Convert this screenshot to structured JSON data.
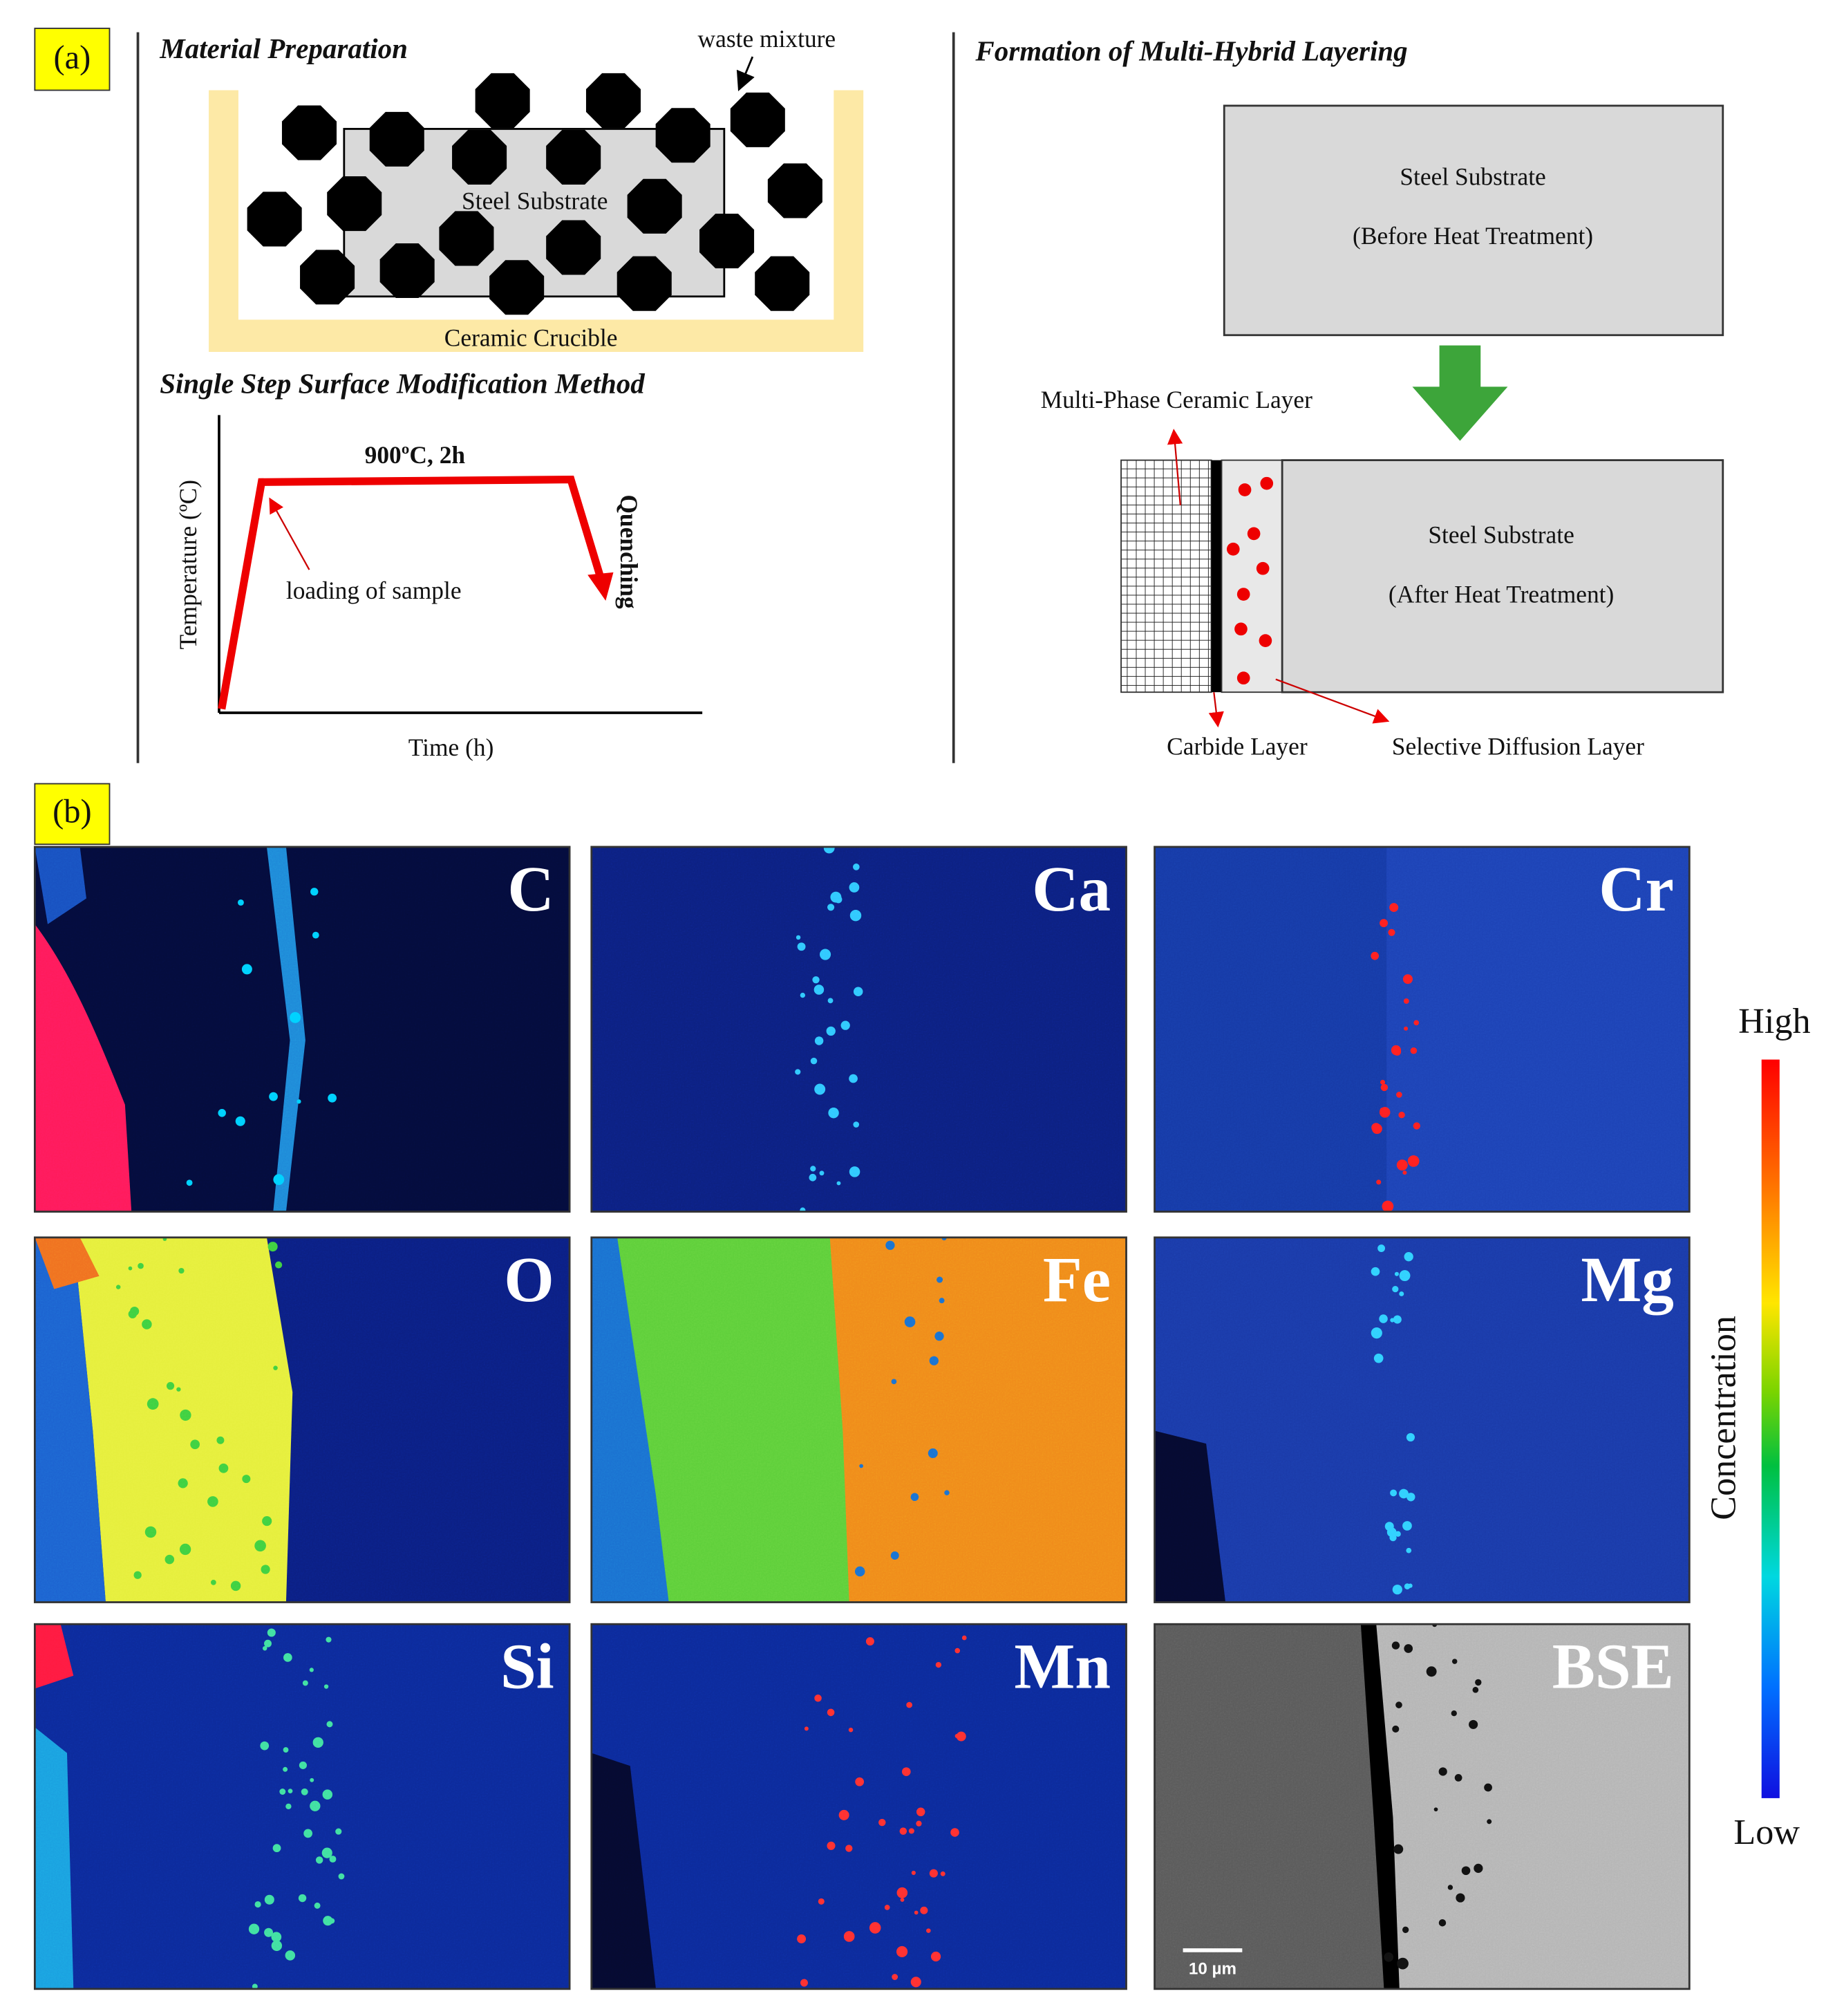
{
  "panel_a": {
    "label": "(a)",
    "material_preparation": {
      "title": "Material Preparation",
      "waste_mixture": "waste mixture",
      "steel_substrate": "Steel Substrate",
      "ceramic_crucible": "Ceramic Crucible"
    },
    "method": {
      "title": "Single Step Surface Modification Method",
      "condition": "900ºC, 2h",
      "y_axis": "Temperature (ºC)",
      "x_axis": "Time (h)",
      "loading": "loading of sample",
      "quenching": "Quenching"
    },
    "formation": {
      "title": "Formation of Multi-Hybrid Layering",
      "before": [
        "Steel Substrate",
        "(Before Heat Treatment)"
      ],
      "after": [
        "Steel Substrate",
        "(After Heat Treatment)"
      ],
      "ceramic_layer": "Multi-Phase Ceramic Layer",
      "carbide_layer": "Carbide Layer",
      "diffusion_layer": "Selective Diffusion Layer"
    }
  },
  "panel_b": {
    "label": "(b)",
    "maps": [
      "C",
      "Ca",
      "Cr",
      "O",
      "Fe",
      "Mg",
      "Si",
      "Mn",
      "BSE"
    ],
    "scale_bar": "10 µm",
    "colorbar": {
      "high": "High",
      "low": "Low",
      "label": "Concentration"
    }
  }
}
